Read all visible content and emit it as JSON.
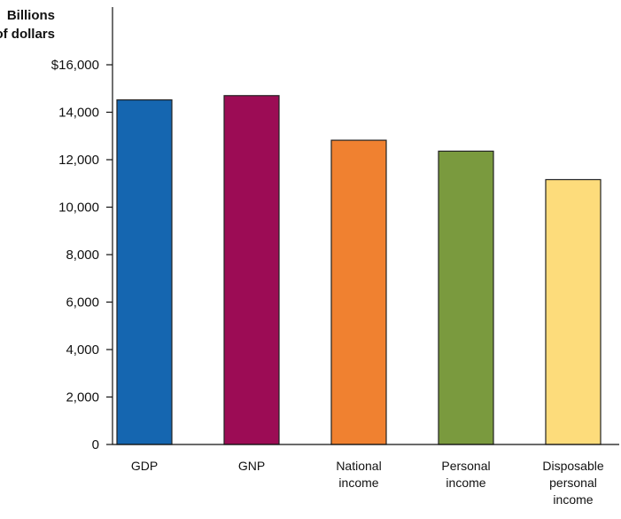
{
  "chart_data": {
    "type": "bar",
    "title": "",
    "ylabel": [
      "Billions",
      "of dollars"
    ],
    "xlabel": "",
    "ylim": [
      0,
      16000
    ],
    "yticks": [
      0,
      2000,
      4000,
      6000,
      8000,
      10000,
      12000,
      14000,
      16000
    ],
    "ytick_labels": [
      "0",
      "2,000",
      "4,000",
      "6,000",
      "8,000",
      "10,000",
      "12,000",
      "14,000",
      "$16,000"
    ],
    "categories": [
      [
        "GDP"
      ],
      [
        "GNP"
      ],
      [
        "National",
        "income"
      ],
      [
        "Personal",
        "income"
      ],
      [
        "Disposable",
        "personal",
        "income"
      ]
    ],
    "values": [
      14520,
      14700,
      12820,
      12360,
      11160
    ],
    "colors": [
      "#1566b0",
      "#9c0c55",
      "#f08130",
      "#7a9a3e",
      "#fddc7b"
    ],
    "grid": false,
    "legend": "none"
  }
}
